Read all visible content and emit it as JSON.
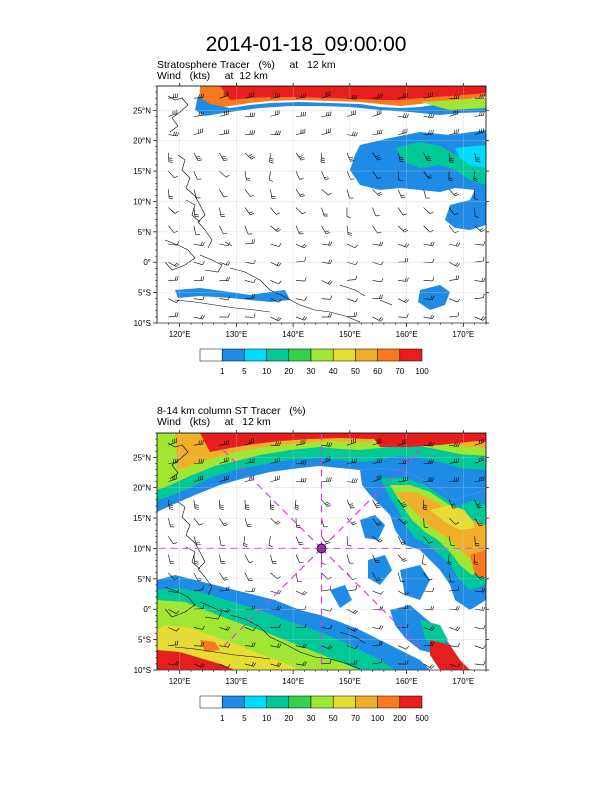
{
  "title": "2014-01-18_09:00:00",
  "panels": [
    {
      "subtitle_line1": "Stratosphere Tracer   (%)     at   12 km",
      "subtitle_line2": "Wind   (kts)     at  12 km",
      "lat_labels": [
        "25°N",
        "20°N",
        "15°N",
        "10°N",
        "5°N",
        "0°",
        "5°S",
        "10°S"
      ],
      "lon_labels": [
        "120°E",
        "130°E",
        "140°E",
        "150°E",
        "160°E",
        "170°E"
      ],
      "colorbar": {
        "labels": [
          "1",
          "5",
          "10",
          "20",
          "30",
          "40",
          "50",
          "60",
          "70",
          "100"
        ],
        "colors": [
          "#ffffff",
          "#1e8ce6",
          "#00dcff",
          "#00c896",
          "#32d24b",
          "#a0e632",
          "#e6dc32",
          "#f0af28",
          "#fa781e",
          "#e61e1e"
        ]
      }
    },
    {
      "subtitle_line1": "8-14 km column ST Tracer   (%)",
      "subtitle_line2": "Wind   (kts)     at   12 km",
      "lat_labels": [
        "25°N",
        "20°N",
        "15°N",
        "10°N",
        "5°N",
        "0°",
        "5°S",
        "10°S"
      ],
      "lon_labels": [
        "120°E",
        "130°E",
        "140°E",
        "150°E",
        "160°E",
        "170°E"
      ],
      "colorbar": {
        "labels": [
          "1",
          "5",
          "10",
          "20",
          "30",
          "50",
          "70",
          "100",
          "200",
          "500"
        ],
        "colors": [
          "#ffffff",
          "#1e8ce6",
          "#00dcff",
          "#00c896",
          "#32d24b",
          "#a0e632",
          "#e6dc32",
          "#f0af28",
          "#fa781e",
          "#e61e1e"
        ]
      },
      "storm_marker": {
        "lon": 145,
        "lat": 10,
        "color": "#dc3cdc"
      }
    }
  ],
  "chart_data": [
    {
      "type": "heatmap",
      "title": "Stratosphere Tracer (%) at 12 km",
      "xlim": [
        116,
        174
      ],
      "ylim": [
        -10,
        29
      ],
      "x_ticks": [
        120,
        130,
        140,
        150,
        160,
        170
      ],
      "y_ticks": [
        25,
        20,
        15,
        10,
        5,
        0,
        -5,
        -10
      ],
      "levels": [
        1,
        5,
        10,
        20,
        30,
        40,
        50,
        60,
        70,
        100
      ],
      "overlay": "wind barbs (kts) at 12 km"
    },
    {
      "type": "heatmap",
      "title": "8-14 km column ST Tracer (%)",
      "xlim": [
        116,
        174
      ],
      "ylim": [
        -10,
        29
      ],
      "x_ticks": [
        120,
        130,
        140,
        150,
        160,
        170
      ],
      "y_ticks": [
        25,
        20,
        15,
        10,
        5,
        0,
        -5,
        -10
      ],
      "levels": [
        1,
        5,
        10,
        20,
        30,
        50,
        70,
        100,
        200,
        500
      ],
      "overlay": "wind barbs (kts) at 12 km"
    }
  ]
}
